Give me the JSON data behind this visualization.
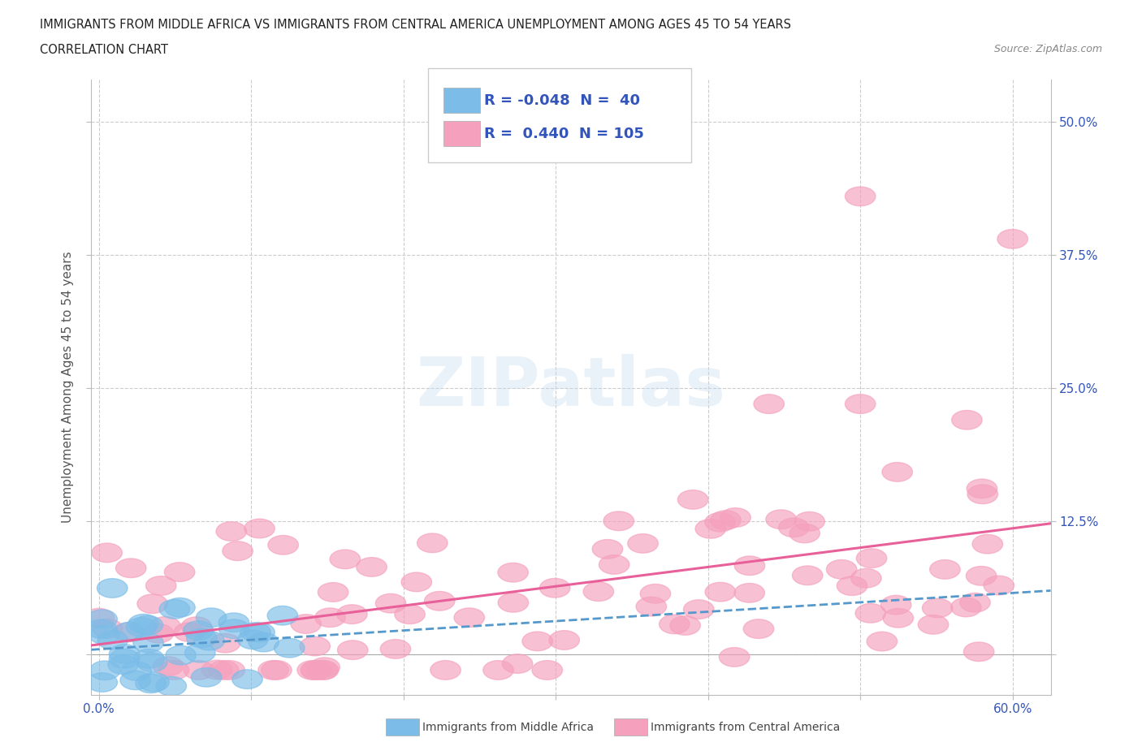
{
  "title_line1": "IMMIGRANTS FROM MIDDLE AFRICA VS IMMIGRANTS FROM CENTRAL AMERICA UNEMPLOYMENT AMONG AGES 45 TO 54 YEARS",
  "title_line2": "CORRELATION CHART",
  "source": "Source: ZipAtlas.com",
  "ylabel": "Unemployment Among Ages 45 to 54 years",
  "xlim": [
    -0.005,
    0.625
  ],
  "ylim": [
    -0.038,
    0.54
  ],
  "xticks": [
    0.0,
    0.1,
    0.2,
    0.3,
    0.4,
    0.5,
    0.6
  ],
  "yticks": [
    0.0,
    0.125,
    0.25,
    0.375,
    0.5
  ],
  "blue_R": -0.048,
  "blue_N": 40,
  "pink_R": 0.44,
  "pink_N": 105,
  "blue_color": "#7bbde8",
  "pink_color": "#f5a0bc",
  "blue_line_color": "#5599cc",
  "pink_line_color": "#e8609a",
  "legend_label_blue": "Immigrants from Middle Africa",
  "legend_label_pink": "Immigrants from Central America",
  "watermark_text": "ZIPatlas",
  "background_color": "#ffffff",
  "grid_color": "#cccccc"
}
